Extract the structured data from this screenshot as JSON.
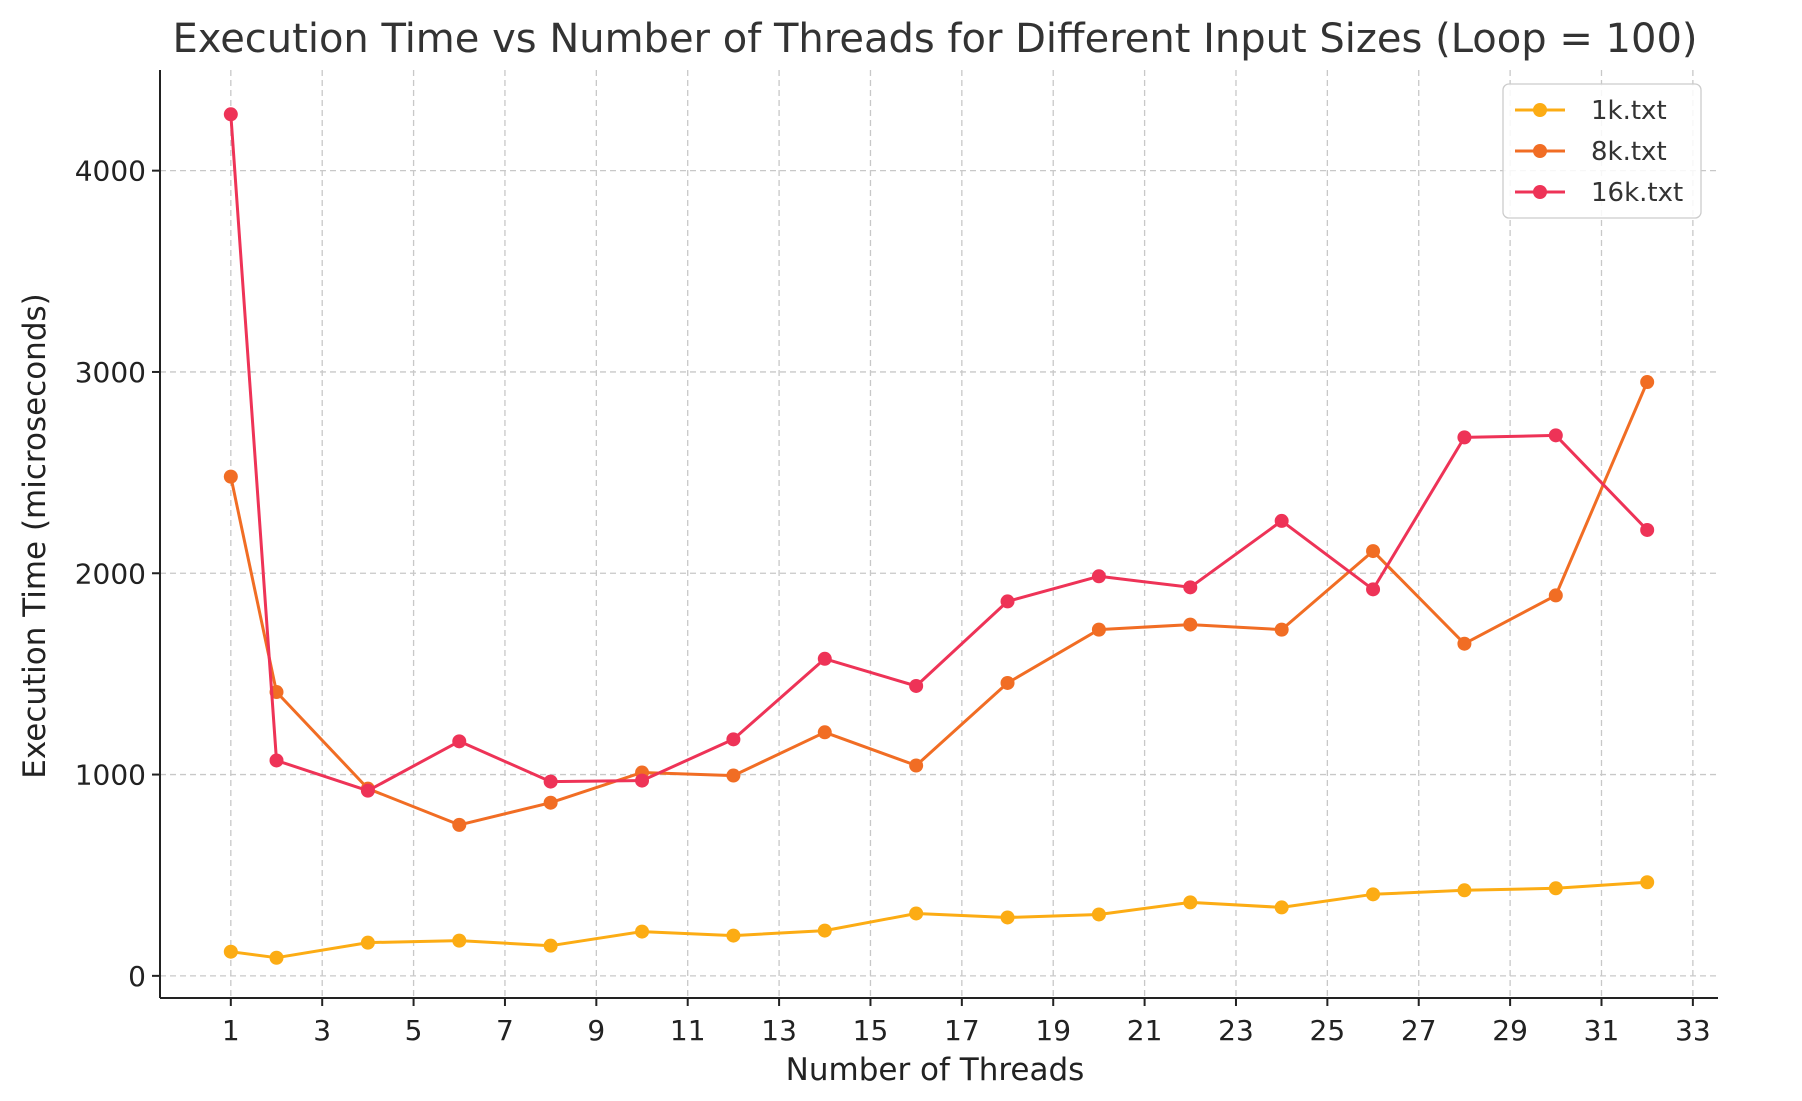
{
  "chart_data": {
    "type": "line",
    "title": "Execution Time vs Number of Threads for Different Input Sizes (Loop = 100)",
    "xlabel": "Number of Threads",
    "ylabel": "Execution Time (microseconds)",
    "x": [
      1,
      2,
      4,
      6,
      8,
      10,
      12,
      14,
      16,
      18,
      20,
      22,
      24,
      26,
      28,
      30,
      32
    ],
    "xlim": [
      -0.55,
      33.55
    ],
    "ylim": [
      -110,
      4500
    ],
    "xticks": [
      1,
      3,
      5,
      7,
      9,
      11,
      13,
      15,
      17,
      19,
      21,
      23,
      25,
      27,
      29,
      31,
      33
    ],
    "yticks": [
      0,
      1000,
      2000,
      3000,
      4000
    ],
    "grid": true,
    "legend_position": "top-right",
    "series": [
      {
        "name": "1k.txt",
        "color": "#fcac14",
        "values": [
          120,
          90,
          165,
          175,
          150,
          220,
          200,
          225,
          310,
          290,
          305,
          365,
          340,
          405,
          425,
          435,
          465
        ]
      },
      {
        "name": "8k.txt",
        "color": "#f16d24",
        "values": [
          2480,
          1410,
          930,
          750,
          860,
          1010,
          995,
          1210,
          1045,
          1455,
          1720,
          1745,
          1720,
          2110,
          1650,
          1890,
          2950
        ]
      },
      {
        "name": "16k.txt",
        "color": "#ee3357",
        "values": [
          4280,
          1070,
          920,
          1165,
          965,
          970,
          1175,
          1575,
          1440,
          1860,
          1985,
          1930,
          2260,
          1920,
          2675,
          2685,
          2215
        ]
      }
    ]
  }
}
